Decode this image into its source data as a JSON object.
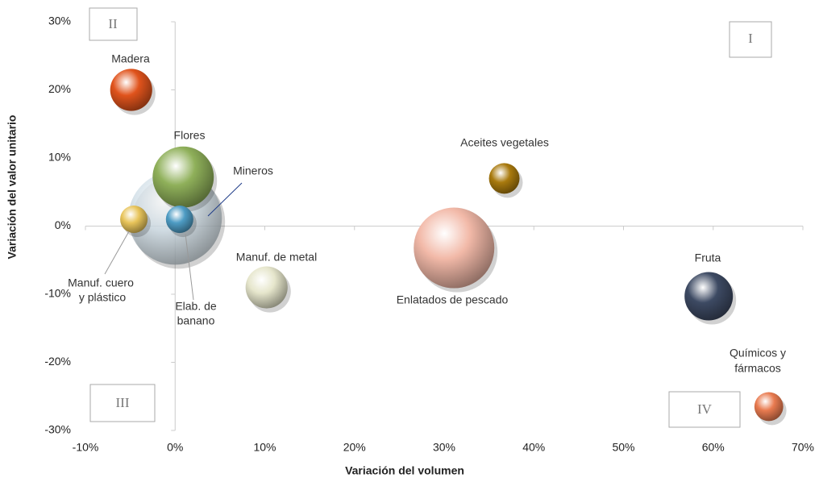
{
  "chart_data": {
    "type": "bubble",
    "xlabel": "Variación del volumen",
    "ylabel": "Variación del valor unitario",
    "quadrants": [
      "I",
      "II",
      "III",
      "IV"
    ],
    "labels": [
      [
        "Mineros"
      ],
      [
        "Madera"
      ],
      [
        "Flores"
      ],
      [
        "Manuf. cuero",
        "y plástico"
      ],
      [
        "Elab. de",
        "banano"
      ],
      [
        "Manuf. de metal"
      ],
      [
        "Aceites vegetales"
      ],
      [
        "Enlatados de pescado"
      ],
      [
        "Fruta"
      ],
      [
        "Químicos y",
        "fármacos"
      ]
    ],
    "x": [
      0,
      -4.9,
      0.9,
      -4.6,
      0.5,
      10.2,
      36.7,
      31.1,
      59.5,
      66.2
    ],
    "y": [
      1.2,
      20,
      7.2,
      1,
      1,
      -9,
      7,
      -3.2,
      -10.3,
      -26.5
    ],
    "sizes": [
      336,
      68,
      144,
      29,
      29,
      68,
      36,
      250,
      90,
      32
    ],
    "colors": [
      "#cfdde6",
      "#e0531c",
      "#8fb05a",
      "#e8c45a",
      "#4e9cc4",
      "#e6e6cc",
      "#a97a0e",
      "#f2b9a8",
      "#3d4a63",
      "#e97b50"
    ],
    "xlim": [
      -10,
      70
    ],
    "ylim": [
      -30,
      30
    ],
    "xticks": [
      {
        "value": -10,
        "label": "-10%"
      },
      {
        "value": 0,
        "label": "0%"
      },
      {
        "value": 10,
        "label": "10%"
      },
      {
        "value": 20,
        "label": "20%"
      },
      {
        "value": 30,
        "label": "30%"
      },
      {
        "value": 40,
        "label": "40%"
      },
      {
        "value": 50,
        "label": "50%"
      },
      {
        "value": 60,
        "label": "60%"
      },
      {
        "value": 70,
        "label": "70%"
      }
    ],
    "yticks": [
      {
        "value": -30,
        "label": "-30%"
      },
      {
        "value": -20,
        "label": "-20%"
      },
      {
        "value": -10,
        "label": "-10%"
      },
      {
        "value": 0,
        "label": "0%"
      },
      {
        "value": 10,
        "label": "10%"
      },
      {
        "value": 20,
        "label": "20%"
      },
      {
        "value": 30,
        "label": "30%"
      }
    ]
  }
}
